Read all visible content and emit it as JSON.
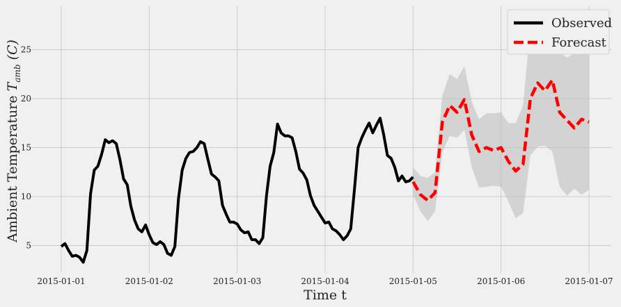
{
  "chart_data": {
    "type": "line",
    "title": "",
    "xlabel": "Time t",
    "ylabel": "Ambient Temperature T_amb (C)",
    "ylabel_parts": {
      "main": "Ambient Temperature ",
      "var": "T",
      "sub": "amb",
      "unit": "(C)"
    },
    "xlim": [
      "2015-01-01T00:00",
      "2015-01-07T00:00"
    ],
    "ylim": [
      2.2,
      29.5
    ],
    "x_ticks": [
      "2015-01-01",
      "2015-01-02",
      "2015-01-03",
      "2015-01-04",
      "2015-01-05",
      "2015-01-06",
      "2015-01-07"
    ],
    "y_ticks": [
      5,
      10,
      15,
      20,
      25
    ],
    "grid": true,
    "legend_position": "top-right",
    "colors": {
      "observed": "#000000",
      "forecast": "#ff0000",
      "band": "#bfbfbf",
      "grid": "#cbcbcb",
      "background": "#f0f0f0"
    },
    "series": [
      {
        "name": "Observed",
        "style": "solid",
        "x": [
          "2015-01-01T00:00",
          "2015-01-01T01:00",
          "2015-01-01T02:00",
          "2015-01-01T03:00",
          "2015-01-01T04:00",
          "2015-01-01T05:00",
          "2015-01-01T06:00",
          "2015-01-01T07:00",
          "2015-01-01T08:00",
          "2015-01-01T09:00",
          "2015-01-01T10:00",
          "2015-01-01T11:00",
          "2015-01-01T12:00",
          "2015-01-01T13:00",
          "2015-01-01T14:00",
          "2015-01-01T15:00",
          "2015-01-01T16:00",
          "2015-01-01T17:00",
          "2015-01-01T18:00",
          "2015-01-01T19:00",
          "2015-01-01T20:00",
          "2015-01-01T21:00",
          "2015-01-01T22:00",
          "2015-01-01T23:00",
          "2015-01-02T00:00",
          "2015-01-02T01:00",
          "2015-01-02T02:00",
          "2015-01-02T03:00",
          "2015-01-02T04:00",
          "2015-01-02T05:00",
          "2015-01-02T06:00",
          "2015-01-02T07:00",
          "2015-01-02T08:00",
          "2015-01-02T09:00",
          "2015-01-02T10:00",
          "2015-01-02T11:00",
          "2015-01-02T12:00",
          "2015-01-02T13:00",
          "2015-01-02T14:00",
          "2015-01-02T15:00",
          "2015-01-02T16:00",
          "2015-01-02T17:00",
          "2015-01-02T18:00",
          "2015-01-02T19:00",
          "2015-01-02T20:00",
          "2015-01-02T21:00",
          "2015-01-02T22:00",
          "2015-01-02T23:00",
          "2015-01-03T00:00",
          "2015-01-03T01:00",
          "2015-01-03T02:00",
          "2015-01-03T03:00",
          "2015-01-03T04:00",
          "2015-01-03T05:00",
          "2015-01-03T06:00",
          "2015-01-03T07:00",
          "2015-01-03T08:00",
          "2015-01-03T09:00",
          "2015-01-03T10:00",
          "2015-01-03T11:00",
          "2015-01-03T12:00",
          "2015-01-03T13:00",
          "2015-01-03T14:00",
          "2015-01-03T15:00",
          "2015-01-03T16:00",
          "2015-01-03T17:00",
          "2015-01-03T18:00",
          "2015-01-03T19:00",
          "2015-01-03T20:00",
          "2015-01-03T21:00",
          "2015-01-03T22:00",
          "2015-01-03T23:00",
          "2015-01-04T00:00",
          "2015-01-04T01:00",
          "2015-01-04T02:00",
          "2015-01-04T03:00",
          "2015-01-04T04:00",
          "2015-01-04T05:00",
          "2015-01-04T06:00",
          "2015-01-04T07:00",
          "2015-01-04T08:00",
          "2015-01-04T09:00",
          "2015-01-04T10:00",
          "2015-01-04T11:00",
          "2015-01-04T12:00",
          "2015-01-04T13:00",
          "2015-01-04T14:00",
          "2015-01-04T15:00",
          "2015-01-04T16:00",
          "2015-01-04T17:00",
          "2015-01-04T18:00",
          "2015-01-04T19:00",
          "2015-01-04T20:00",
          "2015-01-04T21:00",
          "2015-01-04T22:00",
          "2015-01-04T23:00",
          "2015-01-05T00:00"
        ],
        "values": [
          4.9,
          5.2,
          4.5,
          3.9,
          4.0,
          3.8,
          3.3,
          4.5,
          10.3,
          12.7,
          13.1,
          14.3,
          15.8,
          15.5,
          15.7,
          15.4,
          13.8,
          11.8,
          11.2,
          9.0,
          7.6,
          6.7,
          6.4,
          7.1,
          6.1,
          5.3,
          5.1,
          5.4,
          5.1,
          4.2,
          4.0,
          4.9,
          9.8,
          12.7,
          13.9,
          14.5,
          14.6,
          15.0,
          15.6,
          15.4,
          13.8,
          12.3,
          12.0,
          11.6,
          9.1,
          8.2,
          7.4,
          7.4,
          7.2,
          6.6,
          6.3,
          6.4,
          5.6,
          5.6,
          5.2,
          5.8,
          10.1,
          13.1,
          14.5,
          17.4,
          16.5,
          16.2,
          16.2,
          16.0,
          14.6,
          12.8,
          12.4,
          11.7,
          10.1,
          9.1,
          8.5,
          7.9,
          7.3,
          7.4,
          6.7,
          6.5,
          6.1,
          5.6,
          6.0,
          6.7,
          10.7,
          15.0,
          16.0,
          16.8,
          17.5,
          16.5,
          17.3,
          18.0,
          16.3,
          14.2,
          13.9,
          13.0,
          11.6,
          12.1,
          11.5,
          11.6,
          12.0
        ]
      },
      {
        "name": "Forecast",
        "style": "dashed",
        "x": [
          "2015-01-05T00:00",
          "2015-01-05T02:00",
          "2015-01-05T04:00",
          "2015-01-05T06:00",
          "2015-01-05T08:00",
          "2015-01-05T10:00",
          "2015-01-05T12:00",
          "2015-01-05T14:00",
          "2015-01-05T16:00",
          "2015-01-05T18:00",
          "2015-01-05T20:00",
          "2015-01-05T22:00",
          "2015-01-06T00:00",
          "2015-01-06T02:00",
          "2015-01-06T04:00",
          "2015-01-06T06:00",
          "2015-01-06T08:00",
          "2015-01-06T10:00",
          "2015-01-06T12:00",
          "2015-01-06T14:00",
          "2015-01-06T16:00",
          "2015-01-06T18:00",
          "2015-01-06T20:00",
          "2015-01-06T22:00",
          "2015-01-07T00:00"
        ],
        "values": [
          11.5,
          10.2,
          9.6,
          10.4,
          17.6,
          19.3,
          18.6,
          19.9,
          16.3,
          14.6,
          15.0,
          14.7,
          15.0,
          13.6,
          12.6,
          13.3,
          20.0,
          21.6,
          20.8,
          21.9,
          18.6,
          17.8,
          17.0,
          17.9,
          17.6
        ],
        "lower": [
          10.2,
          8.5,
          7.5,
          8.5,
          14.5,
          16.2,
          16.0,
          16.8,
          13.0,
          10.9,
          11.0,
          11.1,
          11.0,
          9.5,
          7.8,
          8.3,
          14.2,
          15.1,
          15.2,
          14.6,
          11.0,
          10.1,
          10.8,
          10.2,
          10.7
        ],
        "upper": [
          13.0,
          12.1,
          11.9,
          12.5,
          20.3,
          22.5,
          22.0,
          23.3,
          19.7,
          17.9,
          18.5,
          18.5,
          18.6,
          17.5,
          17.5,
          19.3,
          27.3,
          28.7,
          27.5,
          27.9,
          24.7,
          24.2,
          24.6,
          25.8,
          26.5
        ]
      }
    ]
  }
}
